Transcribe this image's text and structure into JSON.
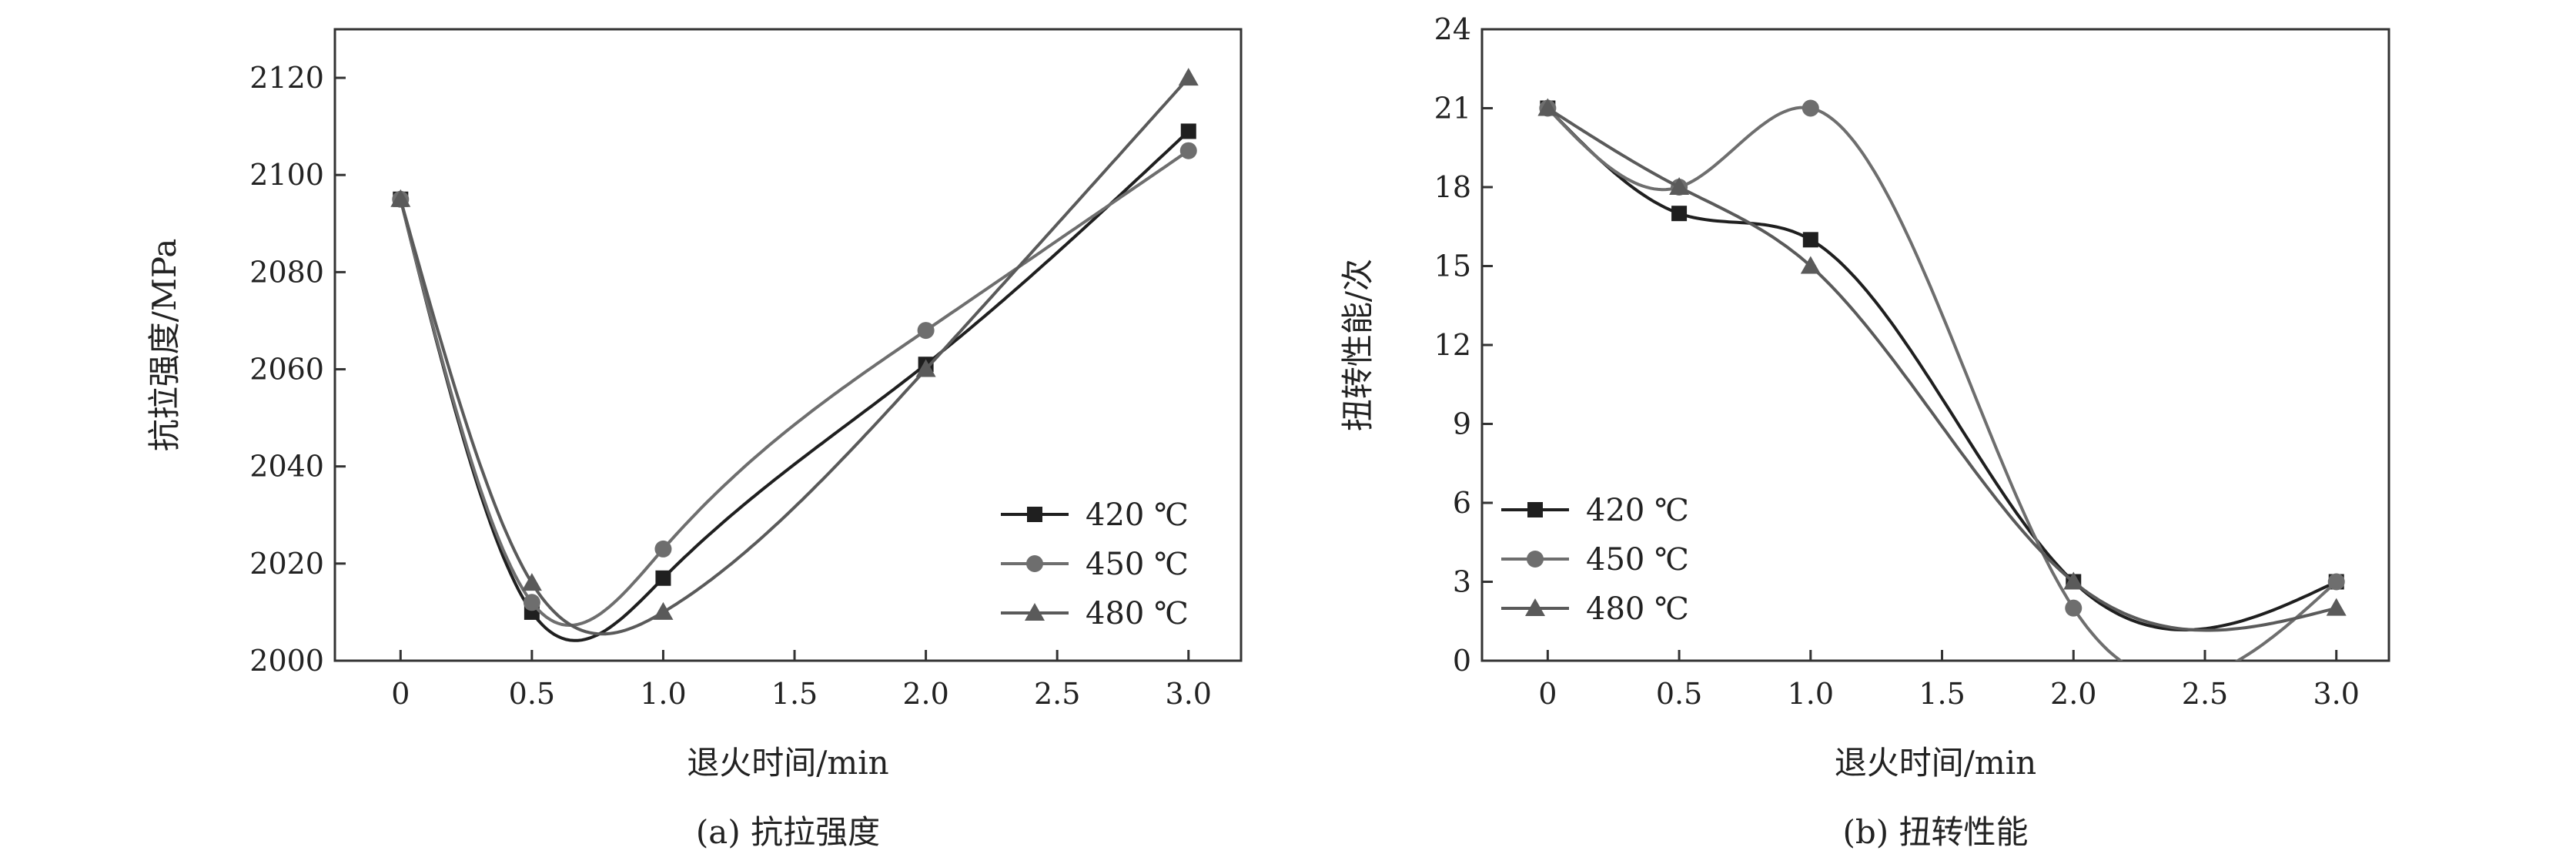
{
  "chart_data": [
    {
      "type": "scatter",
      "caption": "(a) 抗拉强度",
      "xlabel": "退火时间/min",
      "ylabel": "抗拉强度/MPa",
      "xlim": [
        -0.25,
        3.2
      ],
      "ylim": [
        2000,
        2130
      ],
      "xticks": [
        0,
        0.5,
        1.0,
        1.5,
        2.0,
        2.5,
        3.0
      ],
      "xtick_labels": [
        "0",
        "0.5",
        "1.0",
        "1.5",
        "2.0",
        "2.5",
        "3.0"
      ],
      "yticks": [
        2000,
        2020,
        2040,
        2060,
        2080,
        2100,
        2120
      ],
      "ytick_labels": [
        "2000",
        "2020",
        "2040",
        "2060",
        "2080",
        "2100",
        "2120"
      ],
      "legend_position": "bottom-right",
      "fit_curves": true,
      "series": [
        {
          "name": "420 ℃",
          "marker": "square",
          "color": "#1f1f1f",
          "x": [
            0,
            0.5,
            1.0,
            2.0,
            3.0
          ],
          "y": [
            2095,
            2010,
            2017,
            2061,
            2109
          ]
        },
        {
          "name": "450 ℃",
          "marker": "circle",
          "color": "#6e6e6e",
          "x": [
            0,
            0.5,
            1.0,
            2.0,
            3.0
          ],
          "y": [
            2095,
            2012,
            2023,
            2068,
            2105
          ]
        },
        {
          "name": "480 ℃",
          "marker": "triangle",
          "color": "#5a5a5a",
          "x": [
            0,
            0.5,
            1.0,
            2.0,
            3.0
          ],
          "y": [
            2095,
            2016,
            2010,
            2060,
            2120
          ]
        }
      ]
    },
    {
      "type": "scatter",
      "caption": "(b) 扭转性能",
      "xlabel": "退火时间/min",
      "ylabel": "扭转性能/次",
      "xlim": [
        -0.25,
        3.2
      ],
      "ylim": [
        0,
        24
      ],
      "xticks": [
        0,
        0.5,
        1.0,
        1.5,
        2.0,
        2.5,
        3.0
      ],
      "xtick_labels": [
        "0",
        "0.5",
        "1.0",
        "1.5",
        "2.0",
        "2.5",
        "3.0"
      ],
      "yticks": [
        0,
        3,
        6,
        9,
        12,
        15,
        18,
        21,
        24
      ],
      "ytick_labels": [
        "0",
        "3",
        "6",
        "9",
        "12",
        "15",
        "18",
        "21",
        "24"
      ],
      "legend_position": "bottom-left",
      "fit_curves": true,
      "series": [
        {
          "name": "420 ℃",
          "marker": "square",
          "color": "#1f1f1f",
          "x": [
            0,
            0.5,
            1.0,
            2.0,
            3.0
          ],
          "y": [
            21,
            17,
            16,
            3,
            3
          ]
        },
        {
          "name": "450 ℃",
          "marker": "circle",
          "color": "#6e6e6e",
          "x": [
            0,
            0.5,
            1.0,
            2.0,
            3.0
          ],
          "y": [
            21,
            18,
            21,
            2,
            3
          ]
        },
        {
          "name": "480 ℃",
          "marker": "triangle",
          "color": "#5a5a5a",
          "x": [
            0,
            0.5,
            1.0,
            2.0,
            3.0
          ],
          "y": [
            21,
            18,
            15,
            3,
            2
          ]
        }
      ]
    }
  ]
}
